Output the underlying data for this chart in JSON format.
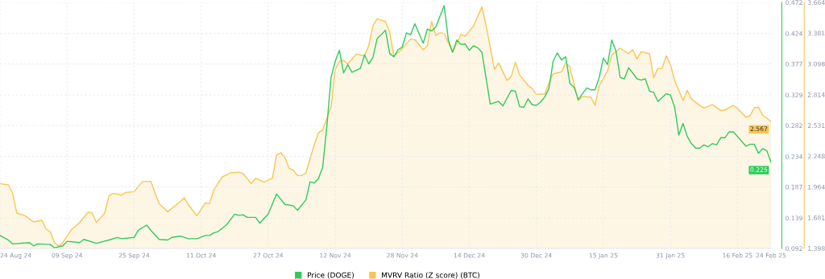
{
  "chart_data": {
    "type": "line",
    "xlim": [
      "2024-08-24",
      "2025-02-24"
    ],
    "xticks": [
      {
        "value": "2024-08-24",
        "label": "24 Aug 24"
      },
      {
        "value": "2024-09-09",
        "label": "09 Sep 24"
      },
      {
        "value": "2024-09-25",
        "label": "25 Sep 24"
      },
      {
        "value": "2024-10-11",
        "label": "11 Oct 24"
      },
      {
        "value": "2024-10-27",
        "label": "27 Oct 24"
      },
      {
        "value": "2024-11-12",
        "label": "12 Nov 24"
      },
      {
        "value": "2024-11-28",
        "label": "28 Nov 24"
      },
      {
        "value": "2024-12-14",
        "label": "14 Dec 24"
      },
      {
        "value": "2024-12-30",
        "label": "30 Dec 24"
      },
      {
        "value": "2025-01-15",
        "label": "15 Jan 25"
      },
      {
        "value": "2025-01-31",
        "label": "31 Jan 25"
      },
      {
        "value": "2025-02-16",
        "label": "16 Feb 25"
      },
      {
        "value": "2025-02-24",
        "label": "24 Feb 25"
      }
    ],
    "ylim": [
      0.092,
      0.472
    ],
    "yticks": [
      0.092,
      0.139,
      0.187,
      0.234,
      0.282,
      0.329,
      0.377,
      0.424,
      0.472
    ],
    "y2lim": [
      1.398,
      3.664
    ],
    "y2ticks": [
      1.398,
      1.681,
      1.964,
      2.248,
      2.531,
      2.814,
      3.098,
      3.381,
      3.664
    ],
    "grid": true,
    "legend": "bottom",
    "series": [
      {
        "name": "MVRV Ratio (Z score) (BTC)",
        "type": "area",
        "axis": "y2",
        "color": "#f9c54e",
        "x": [
          "2024-08-24",
          "2024-08-26",
          "2024-08-27",
          "2024-08-28",
          "2024-08-30",
          "2024-09-01",
          "2024-09-03",
          "2024-09-04",
          "2024-09-05",
          "2024-09-06",
          "2024-09-07",
          "2024-09-08",
          "2024-09-10",
          "2024-09-12",
          "2024-09-14",
          "2024-09-15",
          "2024-09-16",
          "2024-09-18",
          "2024-09-19",
          "2024-09-20",
          "2024-09-22",
          "2024-09-23",
          "2024-09-25",
          "2024-09-27",
          "2024-09-29",
          "2024-09-30",
          "2024-10-01",
          "2024-10-03",
          "2024-10-05",
          "2024-10-07",
          "2024-10-08",
          "2024-10-10",
          "2024-10-12",
          "2024-10-13",
          "2024-10-14",
          "2024-10-16",
          "2024-10-18",
          "2024-10-20",
          "2024-10-21",
          "2024-10-23",
          "2024-10-24",
          "2024-10-26",
          "2024-10-28",
          "2024-10-29",
          "2024-10-30",
          "2024-10-31",
          "2024-11-01",
          "2024-11-02",
          "2024-11-03",
          "2024-11-04",
          "2024-11-05",
          "2024-11-07",
          "2024-11-08",
          "2024-11-09",
          "2024-11-11",
          "2024-11-12",
          "2024-11-13",
          "2024-11-14",
          "2024-11-15",
          "2024-11-17",
          "2024-11-19",
          "2024-11-20",
          "2024-11-21",
          "2024-11-22",
          "2024-11-24",
          "2024-11-25",
          "2024-11-26",
          "2024-11-28",
          "2024-11-30",
          "2024-12-01",
          "2024-12-03",
          "2024-12-04",
          "2024-12-05",
          "2024-12-06",
          "2024-12-07",
          "2024-12-08",
          "2024-12-10",
          "2024-12-12",
          "2024-12-13",
          "2024-12-15",
          "2024-12-17",
          "2024-12-18",
          "2024-12-20",
          "2024-12-21",
          "2024-12-23",
          "2024-12-24",
          "2024-12-25",
          "2024-12-26",
          "2024-12-28",
          "2024-12-29",
          "2024-12-30",
          "2025-01-01",
          "2025-01-02",
          "2025-01-03",
          "2025-01-05",
          "2025-01-06",
          "2025-01-07",
          "2025-01-09",
          "2025-01-10",
          "2025-01-12",
          "2025-01-13",
          "2025-01-14",
          "2025-01-16",
          "2025-01-17",
          "2025-01-19",
          "2025-01-21",
          "2025-01-22",
          "2025-01-23",
          "2025-01-24",
          "2025-01-26",
          "2025-01-27",
          "2025-01-28",
          "2025-01-29",
          "2025-01-30",
          "2025-01-31",
          "2025-02-01",
          "2025-02-03",
          "2025-02-04",
          "2025-02-05",
          "2025-02-06",
          "2025-02-08",
          "2025-02-10",
          "2025-02-12",
          "2025-02-13",
          "2025-02-15",
          "2025-02-16",
          "2025-02-18",
          "2025-02-19",
          "2025-02-20",
          "2025-02-21",
          "2025-02-22",
          "2025-02-24"
        ],
        "values": [
          1.995,
          1.983,
          1.909,
          1.724,
          1.699,
          1.642,
          1.657,
          1.576,
          1.551,
          1.452,
          1.42,
          1.452,
          1.568,
          1.637,
          1.731,
          1.724,
          1.637,
          1.724,
          1.884,
          1.904,
          1.889,
          1.914,
          1.921,
          2.015,
          2.015,
          1.909,
          1.81,
          1.736,
          1.798,
          1.864,
          1.798,
          1.699,
          1.818,
          1.81,
          1.934,
          2.057,
          2.094,
          2.101,
          2.087,
          1.995,
          2.045,
          2.008,
          2.045,
          2.259,
          2.279,
          2.235,
          2.136,
          2.119,
          2.069,
          2.069,
          2.094,
          2.353,
          2.464,
          2.489,
          2.699,
          3.044,
          3.123,
          3.131,
          3.098,
          3.187,
          3.173,
          3.266,
          3.451,
          3.513,
          3.488,
          3.39,
          3.168,
          3.237,
          3.328,
          3.321,
          3.229,
          3.266,
          3.488,
          3.36,
          3.385,
          3.378,
          3.205,
          3.37,
          3.353,
          3.446,
          3.624,
          3.451,
          3.049,
          3.106,
          2.945,
          2.982,
          3.113,
          2.995,
          2.901,
          2.871,
          2.817,
          2.822,
          2.921,
          3.007,
          3.024,
          3.106,
          3.069,
          2.76,
          2.797,
          2.792,
          2.716,
          2.896,
          3.032,
          3.18,
          3.242,
          3.192,
          3.229,
          3.143,
          3.21,
          3.192,
          2.97,
          3.056,
          3.056,
          3.173,
          3.094,
          2.945,
          2.76,
          2.854,
          2.778,
          2.743,
          2.691,
          2.723,
          2.669,
          2.674,
          2.716,
          2.686,
          2.607,
          2.62,
          2.694,
          2.699,
          2.625,
          2.567
        ],
        "value_labels": [
          null,
          null,
          null,
          null,
          null,
          null,
          null,
          null,
          null,
          null,
          null,
          null,
          null,
          null,
          null,
          null,
          null,
          null,
          null,
          null,
          null,
          null,
          null,
          null,
          null,
          null,
          null,
          null,
          null,
          null,
          null,
          null,
          null,
          null,
          null,
          null,
          null,
          null,
          null,
          null,
          null,
          null,
          null,
          null,
          null,
          null,
          null,
          null,
          null,
          null,
          null,
          null,
          null,
          null,
          null,
          null,
          null,
          null,
          null,
          null,
          null,
          null,
          null,
          null,
          null,
          null,
          null,
          null,
          null,
          null,
          null,
          null,
          null,
          null,
          null,
          null,
          null,
          null,
          null,
          null,
          null,
          null,
          null,
          null,
          null,
          null,
          null,
          null,
          null,
          null,
          null,
          null,
          null,
          null,
          null,
          null,
          null,
          null,
          null,
          null,
          null,
          null,
          null,
          null,
          null,
          null,
          null,
          null,
          null,
          null,
          null,
          null,
          null,
          null,
          null,
          null,
          null,
          null,
          null,
          null,
          null,
          null,
          null,
          null,
          null,
          null,
          null,
          null,
          null,
          null,
          null,
          "2.567"
        ]
      },
      {
        "name": "Price (DOGE)",
        "axis": "y",
        "color": "#2fcc5a",
        "x": [
          "2024-08-24",
          "2024-08-26",
          "2024-08-27",
          "2024-08-31",
          "2024-09-01",
          "2024-09-02",
          "2024-09-05",
          "2024-09-06",
          "2024-09-08",
          "2024-09-09",
          "2024-09-12",
          "2024-09-13",
          "2024-09-16",
          "2024-09-19",
          "2024-09-21",
          "2024-09-22",
          "2024-09-25",
          "2024-09-26",
          "2024-09-28",
          "2024-09-29",
          "2024-10-01",
          "2024-10-03",
          "2024-10-04",
          "2024-10-06",
          "2024-10-08",
          "2024-10-10",
          "2024-10-12",
          "2024-10-13",
          "2024-10-14",
          "2024-10-15",
          "2024-10-17",
          "2024-10-19",
          "2024-10-20",
          "2024-10-21",
          "2024-10-22",
          "2024-10-24",
          "2024-10-25",
          "2024-10-27",
          "2024-10-29",
          "2024-10-31",
          "2024-11-02",
          "2024-11-03",
          "2024-11-05",
          "2024-11-06",
          "2024-11-07",
          "2024-11-08",
          "2024-11-09",
          "2024-11-10",
          "2024-11-11",
          "2024-11-12",
          "2024-11-13",
          "2024-11-14",
          "2024-11-15",
          "2024-11-16",
          "2024-11-18",
          "2024-11-19",
          "2024-11-20",
          "2024-11-21",
          "2024-11-22",
          "2024-11-24",
          "2024-11-25",
          "2024-11-26",
          "2024-11-27",
          "2024-11-28",
          "2024-11-29",
          "2024-11-30",
          "2024-12-01",
          "2024-12-03",
          "2024-12-04",
          "2024-12-05",
          "2024-12-06",
          "2024-12-08",
          "2024-12-09",
          "2024-12-10",
          "2024-12-11",
          "2024-12-12",
          "2024-12-13",
          "2024-12-14",
          "2024-12-15",
          "2024-12-16",
          "2024-12-17",
          "2024-12-19",
          "2024-12-21",
          "2024-12-22",
          "2024-12-24",
          "2024-12-25",
          "2024-12-26",
          "2024-12-27",
          "2024-12-28",
          "2024-12-29",
          "2024-12-30",
          "2024-12-31",
          "2025-01-01",
          "2025-01-02",
          "2025-01-03",
          "2025-01-04",
          "2025-01-05",
          "2025-01-06",
          "2025-01-07",
          "2025-01-08",
          "2025-01-09",
          "2025-01-11",
          "2025-01-12",
          "2025-01-13",
          "2025-01-14",
          "2025-01-15",
          "2025-01-16",
          "2025-01-17",
          "2025-01-18",
          "2025-01-19",
          "2025-01-20",
          "2025-01-21",
          "2025-01-22",
          "2025-01-23",
          "2025-01-24",
          "2025-01-25",
          "2025-01-26",
          "2025-01-27",
          "2025-01-28",
          "2025-01-30",
          "2025-01-31",
          "2025-02-01",
          "2025-02-02",
          "2025-02-03",
          "2025-02-04",
          "2025-02-05",
          "2025-02-06",
          "2025-02-07",
          "2025-02-08",
          "2025-02-09",
          "2025-02-10",
          "2025-02-11",
          "2025-02-12",
          "2025-02-13",
          "2025-02-14",
          "2025-02-15",
          "2025-02-16",
          "2025-02-18",
          "2025-02-19",
          "2025-02-20",
          "2025-02-21",
          "2025-02-22",
          "2025-02-23",
          "2025-02-24"
        ],
        "values": [
          0.112,
          0.105,
          0.099,
          0.101,
          0.096,
          0.099,
          0.098,
          0.093,
          0.096,
          0.103,
          0.101,
          0.106,
          0.1,
          0.105,
          0.109,
          0.107,
          0.109,
          0.12,
          0.128,
          0.12,
          0.106,
          0.105,
          0.109,
          0.111,
          0.107,
          0.107,
          0.112,
          0.112,
          0.116,
          0.118,
          0.128,
          0.145,
          0.143,
          0.144,
          0.14,
          0.14,
          0.131,
          0.145,
          0.176,
          0.16,
          0.158,
          0.151,
          0.167,
          0.195,
          0.193,
          0.2,
          0.217,
          0.281,
          0.356,
          0.381,
          0.398,
          0.363,
          0.376,
          0.364,
          0.37,
          0.391,
          0.377,
          0.387,
          0.416,
          0.429,
          0.393,
          0.388,
          0.399,
          0.403,
          0.425,
          0.422,
          0.439,
          0.409,
          0.431,
          0.428,
          0.434,
          0.467,
          0.414,
          0.395,
          0.414,
          0.407,
          0.408,
          0.398,
          0.405,
          0.402,
          0.395,
          0.315,
          0.319,
          0.312,
          0.336,
          0.335,
          0.311,
          0.31,
          0.323,
          0.314,
          0.313,
          0.318,
          0.326,
          0.339,
          0.381,
          0.394,
          0.383,
          0.388,
          0.347,
          0.341,
          0.322,
          0.34,
          0.337,
          0.337,
          0.356,
          0.386,
          0.376,
          0.414,
          0.397,
          0.356,
          0.354,
          0.371,
          0.363,
          0.354,
          0.352,
          0.354,
          0.335,
          0.333,
          0.319,
          0.331,
          0.329,
          0.31,
          0.267,
          0.285,
          0.265,
          0.254,
          0.247,
          0.247,
          0.252,
          0.249,
          0.254,
          0.252,
          0.263,
          0.263,
          0.272,
          0.272,
          0.265,
          0.25,
          0.253,
          0.253,
          0.239,
          0.246,
          0.243,
          0.225
        ],
        "value_labels": [
          null,
          null,
          null,
          null,
          null,
          null,
          null,
          null,
          null,
          null,
          null,
          null,
          null,
          null,
          null,
          null,
          null,
          null,
          null,
          null,
          null,
          null,
          null,
          null,
          null,
          null,
          null,
          null,
          null,
          null,
          null,
          null,
          null,
          null,
          null,
          null,
          null,
          null,
          null,
          null,
          null,
          null,
          null,
          null,
          null,
          null,
          null,
          null,
          null,
          null,
          null,
          null,
          null,
          null,
          null,
          null,
          null,
          null,
          null,
          null,
          null,
          null,
          null,
          null,
          null,
          null,
          null,
          null,
          null,
          null,
          null,
          null,
          null,
          null,
          null,
          null,
          null,
          null,
          null,
          null,
          null,
          null,
          null,
          null,
          null,
          null,
          null,
          null,
          null,
          null,
          null,
          null,
          null,
          null,
          null,
          null,
          null,
          null,
          null,
          null,
          null,
          null,
          null,
          null,
          null,
          null,
          null,
          null,
          null,
          null,
          null,
          null,
          null,
          null,
          null,
          null,
          null,
          null,
          null,
          null,
          null,
          null,
          null,
          null,
          null,
          null,
          null,
          null,
          null,
          null,
          null,
          null,
          null,
          null,
          null,
          null,
          null,
          null,
          null,
          null,
          null,
          null,
          null,
          "0.225"
        ]
      }
    ]
  }
}
